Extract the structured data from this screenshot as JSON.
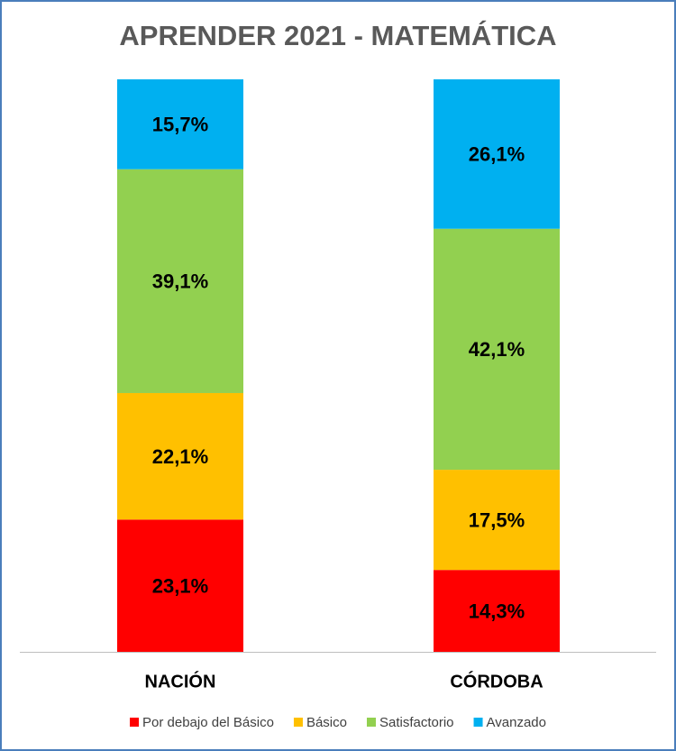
{
  "chart_data": {
    "type": "stacked_bar",
    "title": "APRENDER 2021 - MATEMÁTICA",
    "categories": [
      "NACIÓN",
      "CÓRDOBA"
    ],
    "series": [
      {
        "name": "Por debajo del Básico",
        "color": "#ff0000",
        "values": [
          23.1,
          14.3
        ],
        "value_labels": [
          "23,1%",
          "14,3%"
        ]
      },
      {
        "name": "Básico",
        "color": "#ffc000",
        "values": [
          22.1,
          17.5
        ],
        "value_labels": [
          "22,1%",
          "17,5%"
        ]
      },
      {
        "name": "Satisfactorio",
        "color": "#92d050",
        "values": [
          39.1,
          42.1
        ],
        "value_labels": [
          "39,1%",
          "42,1%"
        ]
      },
      {
        "name": "Avanzado",
        "color": "#00b0f0",
        "values": [
          15.7,
          26.1
        ],
        "value_labels": [
          "15,7%",
          "26,1%"
        ]
      }
    ],
    "legend": "bottom"
  }
}
